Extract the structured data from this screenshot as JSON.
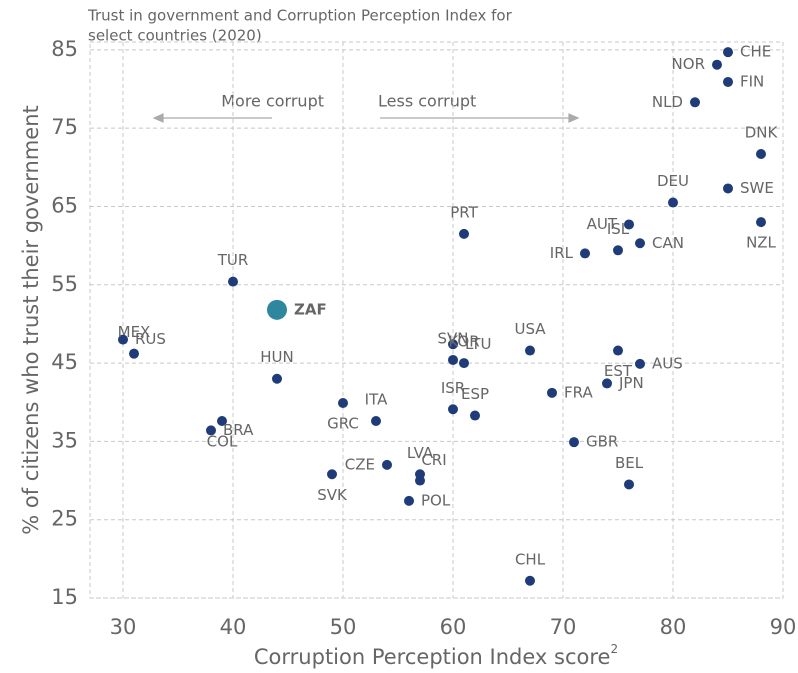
{
  "chart_data": {
    "type": "scatter",
    "title": "Trust in government and Corruption Perception Index for select countries (2020)",
    "title_lines": [
      "Trust in government and Corruption Perception Index for",
      "select countries (2020)"
    ],
    "x_label": "Corruption Perception Index score",
    "x_label_superscript": "2",
    "y_label": "% of citizens who trust their government",
    "annotations": [
      "More corrupt",
      "Less corrupt"
    ],
    "xlim": [
      27,
      90
    ],
    "ylim": [
      15,
      86
    ],
    "xticks": [
      30,
      40,
      50,
      60,
      70,
      80,
      90
    ],
    "yticks": [
      15,
      25,
      35,
      45,
      55,
      65,
      75,
      85
    ],
    "grid": true,
    "color": "#1f3c78",
    "highlight": "ZAF",
    "highlight_color": "#2f879f",
    "labels": [
      "CHE",
      "NOR",
      "FIN",
      "NLD",
      "DNK",
      "DEU",
      "SWE",
      "AUT",
      "NZL",
      "PRT",
      "ISL",
      "CAN",
      "IRL",
      "TUR",
      "ZAF",
      "RUS",
      "MEX",
      "LTU",
      "USA",
      "EST",
      "SVN",
      "KOR",
      "AUS",
      "HUN",
      "JPN",
      "FRA",
      "GRC",
      "ISR",
      "ESP",
      "ITA",
      "COL",
      "BRA",
      "GBR",
      "CZE",
      "LVA",
      "SVK",
      "CRI",
      "BEL",
      "POL",
      "CHL"
    ],
    "x": [
      85,
      84,
      85,
      82,
      88,
      80,
      85,
      76,
      88,
      61,
      75,
      77,
      72,
      40,
      44,
      30,
      31,
      60,
      67,
      75,
      60,
      61,
      77,
      44,
      74,
      69,
      50,
      60,
      62,
      53,
      39,
      38,
      71,
      54,
      57,
      49,
      57,
      76,
      56,
      67
    ],
    "values": [
      84.7,
      83.1,
      80.9,
      78.3,
      71.7,
      65.5,
      67.3,
      62.7,
      63,
      61.5,
      59.4,
      60.3,
      59,
      55.4,
      51.8,
      48,
      46.2,
      47.4,
      46.6,
      46.6,
      45.4,
      45,
      44.9,
      43,
      42.4,
      41.2,
      39.9,
      39.1,
      38.3,
      37.6,
      37.6,
      36.4,
      34.9,
      32,
      30.8,
      30.8,
      30,
      29.5,
      27.4,
      17.2
    ]
  }
}
